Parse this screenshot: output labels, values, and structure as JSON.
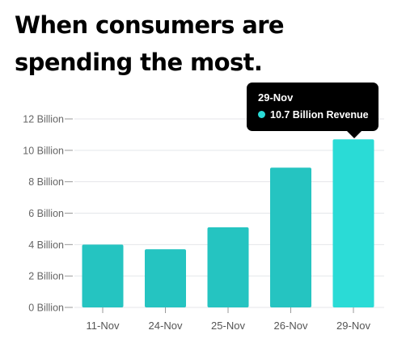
{
  "title": {
    "line1": "When consumers are",
    "line2": "spending the most."
  },
  "chart_data": {
    "type": "bar",
    "categories": [
      "11-Nov",
      "24-Nov",
      "25-Nov",
      "26-Nov",
      "29-Nov"
    ],
    "series": [
      {
        "name": "Revenue",
        "values": [
          4.0,
          3.7,
          5.1,
          8.9,
          10.7
        ],
        "colors": [
          "#25c4c1",
          "#25c4c1",
          "#25c4c1",
          "#25c4c1",
          "#2adbd6"
        ]
      }
    ],
    "ylim": [
      0,
      12
    ],
    "yticks": [
      0,
      2,
      4,
      6,
      8,
      10,
      12
    ],
    "ytick_labels": [
      "0 Billion",
      "2 Billion",
      "4 Billion",
      "6 Billion",
      "8 Billion",
      "10 Billion",
      "12 Billion"
    ],
    "grid": true,
    "xlabel": "",
    "ylabel": ""
  },
  "tooltip": {
    "date": "29-Nov",
    "label": "10.7 Billion Revenue",
    "dot_color": "#2adbd6"
  },
  "colors": {
    "bar": "#25c4c1",
    "bar_highlight": "#2adbd6",
    "grid": "#e4e6ea",
    "axis_tick": "#999999"
  }
}
